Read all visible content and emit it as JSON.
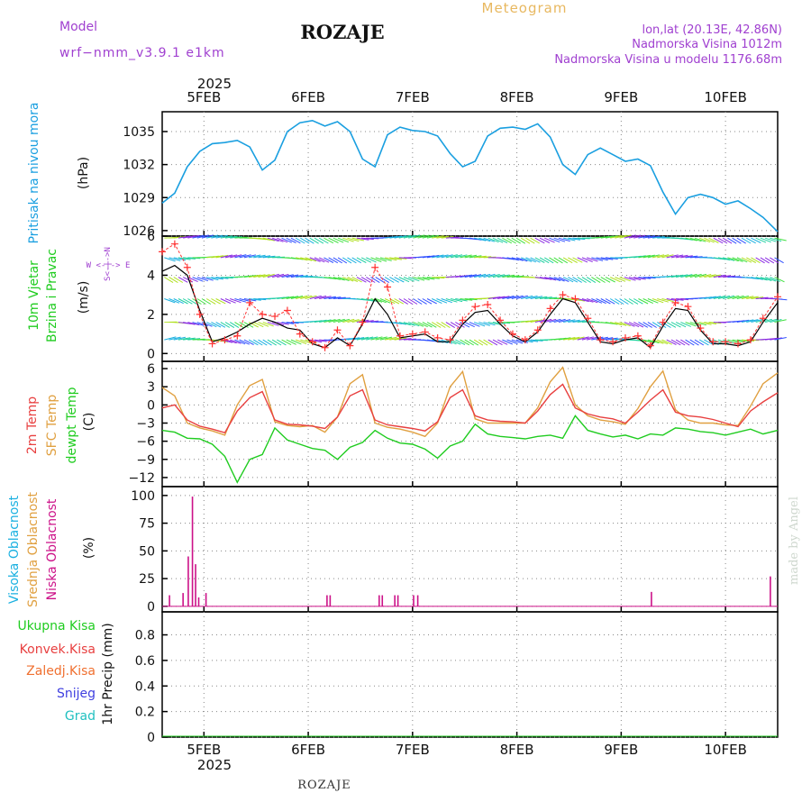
{
  "header": {
    "model_label": "Model",
    "model_name": "wrf−nmm_v3.9.1  e1km",
    "title": "ROZAJE",
    "product": "Meteogram",
    "lonlat": "lon,lat (20.13E, 42.86N)",
    "elevation": "Nadmorska Visina 1012m",
    "model_elevation": "Nadmorska Visina u modelu 1176.68m",
    "footer_location": "ROZAJE",
    "watermark": "made by Angel"
  },
  "colors": {
    "pressure": "#1a9fe0",
    "wind_speed": "#000000",
    "gust": "#ff3333",
    "temp2m": "#e84040",
    "sfc_temp": "#e0a040",
    "dewpt": "#20cc20",
    "cloud": "#cc1188",
    "label_purple": "#a040d0"
  },
  "time_axis": {
    "year_label": "2025",
    "day_labels": [
      "5FEB",
      "6FEB",
      "7FEB",
      "8FEB",
      "9FEB",
      "10FEB"
    ],
    "start_day": 4.6,
    "end_day": 10.5
  },
  "chart_data": [
    {
      "type": "line",
      "panel": "pressure",
      "ylabel_left": "Pritisak na nivou mora",
      "unit": "(hPa)",
      "yticks": [
        1026,
        1029,
        1032,
        1035
      ],
      "ylim": [
        1025.5,
        1036.8
      ],
      "x": [
        4.6,
        4.72,
        4.84,
        4.96,
        5.08,
        5.2,
        5.32,
        5.44,
        5.56,
        5.68,
        5.8,
        5.92,
        6.04,
        6.16,
        6.28,
        6.4,
        6.52,
        6.64,
        6.76,
        6.88,
        7.0,
        7.12,
        7.24,
        7.36,
        7.48,
        7.6,
        7.72,
        7.84,
        7.96,
        8.08,
        8.2,
        8.32,
        8.44,
        8.56,
        8.68,
        8.8,
        8.92,
        9.04,
        9.16,
        9.28,
        9.4,
        9.52,
        9.64,
        9.76,
        9.88,
        10.0,
        10.12,
        10.24,
        10.36,
        10.5
      ],
      "series": [
        {
          "values": [
            1028.5,
            1029.4,
            1031.8,
            1033.2,
            1033.9,
            1034.0,
            1034.2,
            1033.6,
            1031.5,
            1032.4,
            1035.0,
            1035.8,
            1036.0,
            1035.5,
            1035.9,
            1035.0,
            1032.5,
            1031.8,
            1034.7,
            1035.4,
            1035.1,
            1035.0,
            1034.6,
            1033.0,
            1031.8,
            1032.3,
            1034.6,
            1035.3,
            1035.4,
            1035.2,
            1035.7,
            1034.5,
            1032.0,
            1031.1,
            1032.9,
            1033.5,
            1032.9,
            1032.3,
            1032.5,
            1031.9,
            1029.5,
            1027.5,
            1029.0,
            1029.3,
            1029.0,
            1028.4,
            1028.7,
            1028.0,
            1027.2,
            1025.9
          ]
        }
      ]
    },
    {
      "type": "line",
      "panel": "wind",
      "ylabel_left": "10m Vjetar Brzina i Pravac",
      "unit": "(m/s)",
      "compass": "W <-|-> E",
      "yticks": [
        0,
        2,
        4,
        6
      ],
      "ylim": [
        -0.4,
        6.0
      ],
      "x": [
        4.6,
        4.72,
        4.84,
        4.96,
        5.08,
        5.2,
        5.32,
        5.44,
        5.56,
        5.68,
        5.8,
        5.92,
        6.04,
        6.16,
        6.28,
        6.4,
        6.52,
        6.64,
        6.76,
        6.88,
        7.0,
        7.12,
        7.24,
        7.36,
        7.48,
        7.6,
        7.72,
        7.84,
        7.96,
        8.08,
        8.2,
        8.32,
        8.44,
        8.56,
        8.68,
        8.8,
        8.92,
        9.04,
        9.16,
        9.28,
        9.4,
        9.52,
        9.64,
        9.76,
        9.88,
        10.0,
        10.12,
        10.24,
        10.36,
        10.5
      ],
      "series": [
        {
          "name": "wind speed",
          "values": [
            4.2,
            4.5,
            4.0,
            2.2,
            0.6,
            0.8,
            1.1,
            1.5,
            1.8,
            1.6,
            1.3,
            1.2,
            0.5,
            0.3,
            0.8,
            0.4,
            1.5,
            2.8,
            2.0,
            0.8,
            0.9,
            1.0,
            0.6,
            0.6,
            1.5,
            2.1,
            2.2,
            1.5,
            0.9,
            0.6,
            1.1,
            2.0,
            2.8,
            2.6,
            1.6,
            0.6,
            0.5,
            0.7,
            0.8,
            0.3,
            1.4,
            2.3,
            2.2,
            1.2,
            0.5,
            0.5,
            0.4,
            0.6,
            1.6,
            2.6
          ]
        },
        {
          "name": "gust",
          "values": [
            5.2,
            5.6,
            4.4,
            2.0,
            0.5,
            0.7,
            0.9,
            2.6,
            2.0,
            1.9,
            2.2,
            1.0,
            0.6,
            0.3,
            1.2,
            0.4,
            1.6,
            4.4,
            3.4,
            0.9,
            1.0,
            1.1,
            0.8,
            0.7,
            1.7,
            2.4,
            2.5,
            1.7,
            1.0,
            0.7,
            1.2,
            2.3,
            3.0,
            2.8,
            1.8,
            0.7,
            0.6,
            0.8,
            0.9,
            0.4,
            1.6,
            2.6,
            2.4,
            1.3,
            0.6,
            0.6,
            0.5,
            0.7,
            1.8,
            2.9
          ]
        }
      ]
    },
    {
      "type": "line",
      "panel": "temperature",
      "ylabel_left": [
        "2m Temp",
        "SFC Temp",
        "dewpt Temp"
      ],
      "unit": "(C)",
      "yticks": [
        -12,
        -9,
        -6,
        -3,
        0,
        3,
        6
      ],
      "ylim": [
        -13.5,
        7.2
      ],
      "x": [
        4.6,
        4.72,
        4.84,
        4.96,
        5.08,
        5.2,
        5.32,
        5.44,
        5.56,
        5.68,
        5.8,
        5.92,
        6.04,
        6.16,
        6.28,
        6.4,
        6.52,
        6.64,
        6.76,
        6.88,
        7.0,
        7.12,
        7.24,
        7.36,
        7.48,
        7.6,
        7.72,
        7.84,
        7.96,
        8.08,
        8.2,
        8.32,
        8.44,
        8.56,
        8.68,
        8.8,
        8.92,
        9.04,
        9.16,
        9.28,
        9.4,
        9.52,
        9.64,
        9.76,
        9.88,
        10.0,
        10.12,
        10.24,
        10.36,
        10.5
      ],
      "series": [
        {
          "name": "2m Temp",
          "values": [
            -0.5,
            0.0,
            -2.5,
            -3.5,
            -4.0,
            -4.6,
            -1.0,
            1.2,
            2.2,
            -2.5,
            -3.2,
            -3.3,
            -3.5,
            -3.9,
            -2.0,
            1.5,
            2.5,
            -2.5,
            -3.3,
            -3.6,
            -3.9,
            -4.3,
            -2.8,
            1.2,
            2.5,
            -1.8,
            -2.5,
            -2.7,
            -2.8,
            -3.0,
            -1.0,
            1.7,
            3.4,
            -0.5,
            -1.5,
            -2.0,
            -2.3,
            -3.0,
            -1.2,
            0.8,
            2.5,
            -1.2,
            -1.8,
            -2.0,
            -2.4,
            -3.0,
            -3.6,
            -1.0,
            0.5,
            2.0
          ]
        },
        {
          "name": "SFC Temp",
          "values": [
            2.9,
            1.5,
            -3.0,
            -3.8,
            -4.3,
            -5.0,
            0.0,
            3.2,
            4.2,
            -2.8,
            -3.4,
            -3.6,
            -3.4,
            -4.5,
            -2.0,
            3.5,
            5.0,
            -3.0,
            -3.7,
            -4.0,
            -4.5,
            -5.2,
            -3.0,
            3.0,
            5.5,
            -2.3,
            -3.0,
            -3.0,
            -3.0,
            -3.0,
            -0.5,
            3.8,
            6.2,
            0.0,
            -1.8,
            -2.5,
            -2.8,
            -3.2,
            -0.6,
            3.0,
            5.6,
            -0.8,
            -2.5,
            -3.0,
            -3.0,
            -3.3,
            -3.4,
            -0.2,
            3.5,
            5.3
          ]
        },
        {
          "name": "dewpt Temp",
          "values": [
            -4.2,
            -4.5,
            -5.5,
            -5.6,
            -6.5,
            -8.5,
            -12.8,
            -9.0,
            -8.2,
            -3.8,
            -5.8,
            -6.5,
            -7.2,
            -7.5,
            -9.0,
            -7.0,
            -6.2,
            -4.2,
            -5.5,
            -6.3,
            -6.5,
            -7.3,
            -8.8,
            -6.8,
            -6.0,
            -3.2,
            -4.8,
            -5.2,
            -5.4,
            -5.6,
            -5.2,
            -5.0,
            -5.5,
            -1.8,
            -4.2,
            -4.8,
            -5.3,
            -5.0,
            -5.6,
            -4.8,
            -5.0,
            -3.8,
            -4.0,
            -4.4,
            -4.6,
            -5.0,
            -4.5,
            -4.0,
            -4.8,
            -4.2
          ]
        }
      ]
    },
    {
      "type": "bar",
      "panel": "cloud",
      "ylabel_left": [
        "Visoka Oblacnost",
        "Srednja Oblacnost",
        "Niska Oblacnost"
      ],
      "unit": "(%)",
      "yticks": [
        0,
        25,
        50,
        75,
        100
      ],
      "ylim": [
        -5,
        108
      ],
      "x": [
        4.67,
        4.8,
        4.85,
        4.89,
        4.92,
        4.95,
        5.02,
        6.18,
        6.21,
        6.68,
        6.71,
        6.83,
        6.86,
        7.01,
        7.05,
        9.29,
        10.43
      ],
      "values": [
        10,
        12,
        45,
        99,
        38,
        8,
        12,
        10,
        10,
        10,
        10,
        10,
        10,
        10,
        10,
        13,
        27
      ]
    },
    {
      "type": "bar",
      "panel": "precipitation",
      "ylabel_left": [
        "Ukupna Kisa",
        "Konvek.Kisa",
        "Zaledj.Kisa",
        "Snijeg",
        "Grad"
      ],
      "unit": "1hr Precip (mm)",
      "yticks": [
        "0",
        "0.2",
        "0.4",
        "0.6",
        "0.8"
      ],
      "ylim": [
        0,
        0.98
      ],
      "x": [],
      "values": []
    }
  ]
}
